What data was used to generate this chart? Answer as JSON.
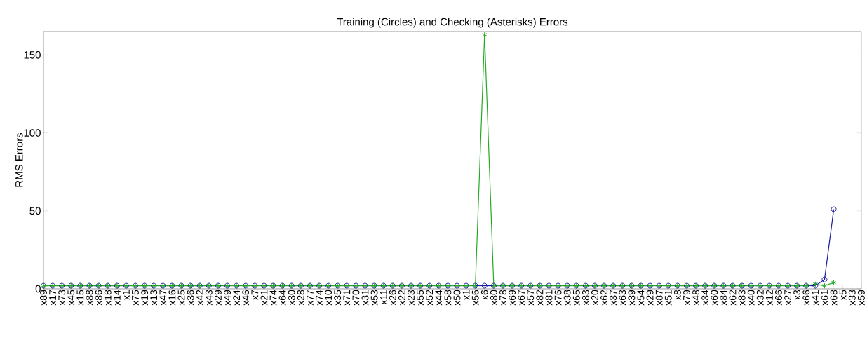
{
  "chart_data": {
    "type": "line",
    "title": "Training (Circles) and Checking (Asterisks) Errors",
    "ylabel": "RMS Errors",
    "categories": [
      "x89",
      "x17",
      "x73",
      "x45",
      "x15",
      "x88",
      "x86",
      "x18",
      "x14",
      "x1",
      "x75",
      "x19",
      "x13",
      "x47",
      "x16",
      "x25",
      "x36",
      "x42",
      "x43",
      "x29",
      "x49",
      "x24",
      "x46",
      "x7",
      "x21",
      "x74",
      "x64",
      "x30",
      "x28",
      "x77",
      "x74",
      "x10",
      "x35",
      "x71",
      "x70",
      "x31",
      "x53",
      "x11",
      "x26",
      "x22",
      "x23",
      "x55",
      "x52",
      "x44",
      "x58",
      "x50",
      "x1",
      "x56",
      "x6",
      "x80",
      "x78",
      "x69",
      "x67",
      "x57",
      "x82",
      "x81",
      "x76",
      "x38",
      "x65",
      "x83",
      "x20",
      "x62",
      "x37",
      "x63",
      "x39",
      "x54",
      "x29",
      "x87",
      "x51",
      "x8",
      "x79",
      "x48",
      "x34",
      "x60",
      "x84",
      "x62",
      "x83",
      "x40",
      "x32",
      "x12",
      "x66",
      "x27",
      "x3",
      "x66",
      "x41",
      "x61",
      "x68",
      "x5",
      "x33",
      "x59"
    ],
    "series": [
      {
        "color": "#1a1aa0",
        "marker": "circle",
        "values": [
          2,
          2,
          2,
          2,
          2,
          2,
          2,
          2,
          2,
          2,
          2,
          2,
          2,
          2,
          2,
          2,
          2,
          2,
          2,
          2,
          2,
          2,
          2,
          2,
          2,
          2,
          2,
          2,
          2,
          2,
          2,
          2,
          2,
          2,
          2,
          2,
          2,
          2,
          2,
          2,
          2,
          2,
          2,
          2,
          2,
          2,
          2,
          2,
          2,
          2,
          2,
          2,
          2,
          2,
          2,
          2,
          2,
          2,
          2,
          2,
          2,
          2,
          2,
          2,
          2,
          2,
          2,
          2,
          2,
          2,
          2,
          2,
          2,
          2,
          2,
          2,
          2,
          2,
          2,
          2,
          2,
          2,
          2,
          2,
          2,
          6,
          51,
          null,
          null,
          null
        ]
      },
      {
        "color": "#22aa22",
        "marker": "cross",
        "values": [
          2,
          2,
          2,
          2,
          2,
          2,
          2,
          2,
          2,
          2,
          2,
          2,
          2,
          2,
          2,
          2,
          2,
          2,
          2,
          2,
          2,
          2,
          2,
          2,
          2,
          2,
          2,
          2,
          2,
          2,
          2,
          2,
          2,
          2,
          2,
          2,
          2,
          2,
          2,
          2,
          2,
          2,
          2,
          2,
          2,
          2,
          2,
          2,
          163,
          2,
          2,
          2,
          2,
          2,
          2,
          2,
          2,
          2,
          2,
          2,
          2,
          2,
          2,
          2,
          2,
          2,
          2,
          2,
          2,
          2,
          2,
          2,
          2,
          2,
          2,
          2,
          2,
          2,
          2,
          2,
          2,
          2,
          2,
          2,
          3,
          2,
          4,
          null,
          null,
          null
        ]
      }
    ],
    "ylim": [
      0,
      165
    ],
    "yticks": [
      0,
      50,
      100,
      150
    ],
    "grid": false
  }
}
